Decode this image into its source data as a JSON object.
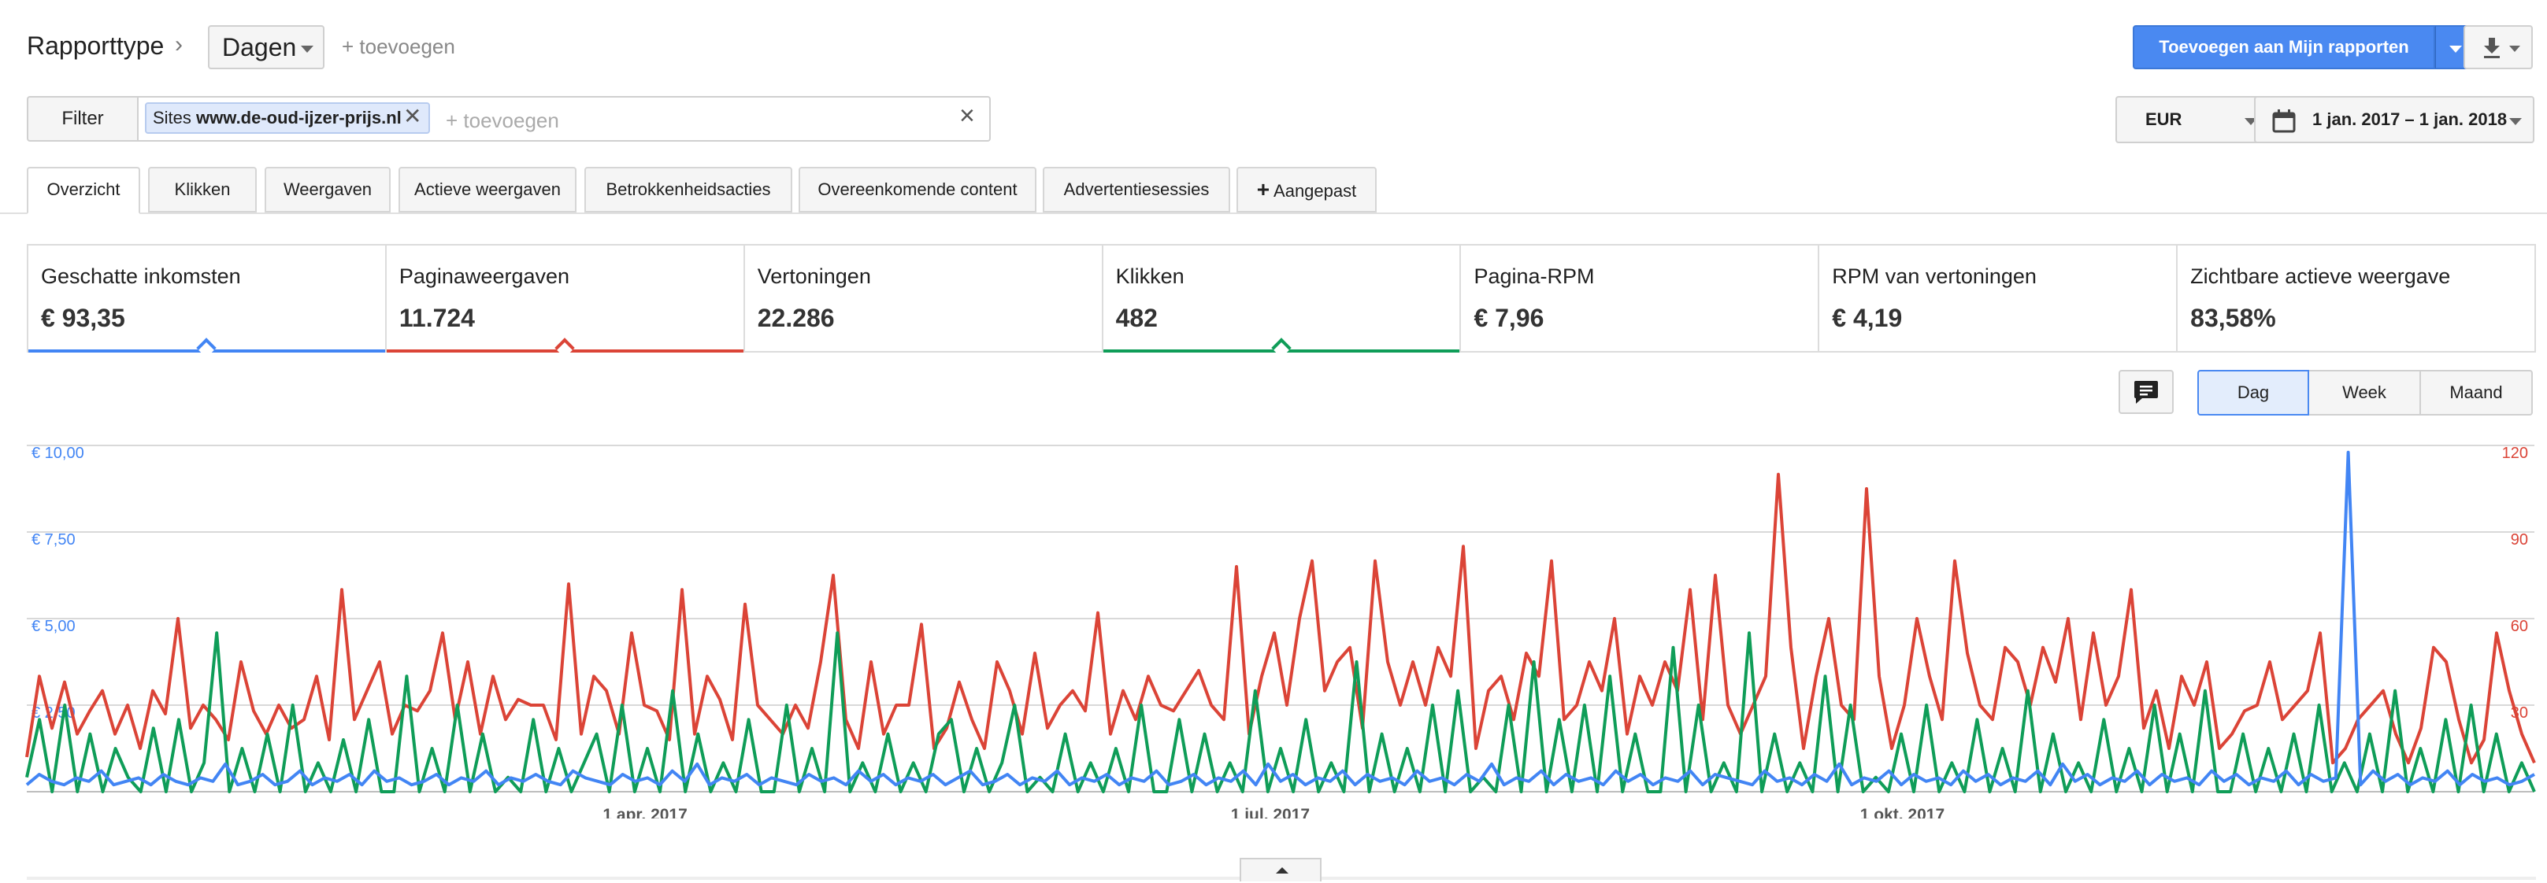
{
  "header": {
    "report_type_label": "Rapporttype",
    "granularity_value": "Dagen",
    "add_link": "+ toevoegen",
    "add_to_reports_label": "Toevoegen aan Mijn rapporten"
  },
  "filter": {
    "button_label": "Filter",
    "chip_prefix": "Sites",
    "chip_site": "www.de-oud-ijzer-prijs.nl",
    "add_placeholder": "+ toevoegen"
  },
  "currency": "EUR",
  "date_range": "1 jan. 2017 – 1 jan. 2018",
  "tabs": [
    {
      "label": "Overzicht",
      "active": true
    },
    {
      "label": "Klikken"
    },
    {
      "label": "Weergaven"
    },
    {
      "label": "Actieve weergaven"
    },
    {
      "label": "Betrokkenheidsacties"
    },
    {
      "label": "Overeenkomende content"
    },
    {
      "label": "Advertentiesessies"
    },
    {
      "label": "Aangepast"
    }
  ],
  "metrics": [
    {
      "label": "Geschatte inkomsten",
      "value": "€ 93,35",
      "color": "#4285f4"
    },
    {
      "label": "Paginaweergaven",
      "value": "11.724",
      "color": "#db4437"
    },
    {
      "label": "Vertoningen",
      "value": "22.286"
    },
    {
      "label": "Klikken",
      "value": "482",
      "color": "#0f9d58"
    },
    {
      "label": "Pagina-RPM",
      "value": "€ 7,96"
    },
    {
      "label": "RPM van vertoningen",
      "value": "€ 4,19"
    },
    {
      "label": "Zichtbare actieve weergave",
      "value": "83,58%"
    }
  ],
  "granularity_buttons": [
    "Dag",
    "Week",
    "Maand"
  ],
  "chart_data": {
    "type": "line",
    "x_range": [
      "2017-01-01",
      "2018-01-01"
    ],
    "x_tick_labels": [
      "1 apr. 2017",
      "1 jul. 2017",
      "1 okt. 2017"
    ],
    "y_left": {
      "ticks": [
        "€ 2,50",
        "€ 5,00",
        "€ 7,50",
        "€ 10,00"
      ],
      "range": [
        0,
        10
      ],
      "color": "#4285f4"
    },
    "y_right": {
      "ticks": [
        "30",
        "60",
        "90",
        "120"
      ],
      "range": [
        0,
        120
      ],
      "color": "#db4437"
    },
    "grid": true,
    "series": [
      {
        "name": "Paginaweergaven",
        "axis": "right",
        "color": "#db4437",
        "sampling_days": 2,
        "values": [
          12,
          40,
          22,
          38,
          20,
          28,
          35,
          20,
          30,
          15,
          35,
          27,
          60,
          22,
          30,
          25,
          18,
          45,
          28,
          20,
          30,
          22,
          25,
          40,
          18,
          70,
          25,
          35,
          45,
          20,
          30,
          28,
          35,
          55,
          25,
          45,
          20,
          40,
          25,
          32,
          30,
          30,
          18,
          72,
          20,
          40,
          35,
          20,
          55,
          30,
          28,
          18,
          70,
          20,
          40,
          32,
          18,
          65,
          30,
          25,
          20,
          30,
          22,
          45,
          75,
          25,
          15,
          45,
          20,
          30,
          30,
          58,
          15,
          22,
          38,
          25,
          15,
          45,
          35,
          20,
          48,
          22,
          30,
          35,
          28,
          62,
          20,
          35,
          25,
          40,
          30,
          28,
          35,
          42,
          30,
          25,
          78,
          20,
          40,
          55,
          30,
          60,
          80,
          35,
          45,
          50,
          22,
          80,
          45,
          30,
          45,
          30,
          50,
          40,
          85,
          15,
          35,
          40,
          25,
          48,
          40,
          80,
          25,
          30,
          45,
          35,
          60,
          20,
          40,
          30,
          45,
          35,
          70,
          25,
          75,
          30,
          20,
          30,
          40,
          110,
          50,
          15,
          40,
          60,
          30,
          25,
          105,
          40,
          15,
          30,
          60,
          40,
          25,
          80,
          48,
          30,
          25,
          50,
          45,
          30,
          50,
          38,
          60,
          25,
          55,
          30,
          40,
          70,
          22,
          35,
          15,
          40,
          30,
          45,
          15,
          20,
          28,
          30,
          45,
          25,
          30,
          35,
          55,
          10,
          15,
          25,
          30,
          35,
          20,
          10,
          22,
          50,
          45,
          25,
          10,
          18,
          55,
          35,
          20,
          10
        ]
      },
      {
        "name": "Klikken",
        "axis": "right",
        "color": "#0f9d58",
        "sampling_days": 2,
        "values": [
          5,
          25,
          0,
          30,
          0,
          20,
          0,
          15,
          5,
          0,
          22,
          0,
          25,
          0,
          10,
          55,
          0,
          15,
          0,
          20,
          0,
          30,
          0,
          10,
          0,
          18,
          0,
          25,
          0,
          0,
          40,
          0,
          15,
          0,
          30,
          0,
          20,
          0,
          5,
          0,
          25,
          0,
          15,
          0,
          10,
          20,
          0,
          30,
          0,
          15,
          0,
          35,
          0,
          20,
          0,
          10,
          0,
          25,
          0,
          0,
          30,
          0,
          15,
          0,
          55,
          0,
          10,
          0,
          20,
          0,
          10,
          0,
          20,
          25,
          0,
          15,
          0,
          10,
          30,
          0,
          5,
          0,
          20,
          0,
          10,
          0,
          15,
          0,
          30,
          0,
          0,
          25,
          0,
          20,
          0,
          10,
          0,
          35,
          0,
          15,
          0,
          25,
          0,
          10,
          0,
          45,
          0,
          20,
          0,
          15,
          0,
          30,
          0,
          35,
          0,
          5,
          0,
          30,
          0,
          45,
          0,
          25,
          0,
          30,
          0,
          40,
          0,
          20,
          0,
          0,
          50,
          0,
          30,
          0,
          10,
          0,
          55,
          0,
          20,
          0,
          10,
          0,
          40,
          0,
          30,
          0,
          5,
          0,
          20,
          0,
          30,
          0,
          10,
          0,
          25,
          0,
          15,
          0,
          35,
          0,
          20,
          0,
          10,
          0,
          25,
          0,
          15,
          0,
          30,
          0,
          20,
          0,
          35,
          0,
          0,
          20,
          0,
          15,
          0,
          20,
          0,
          30,
          0,
          10,
          0,
          20,
          0,
          35,
          0,
          15,
          0,
          25,
          0,
          30,
          0,
          20,
          0,
          10,
          0
        ]
      },
      {
        "name": "Geschatte inkomsten",
        "axis": "left",
        "color": "#4285f4",
        "sampling_days": 2,
        "values": [
          0.2,
          0.5,
          0.3,
          0.2,
          0.4,
          0.3,
          0.6,
          0.2,
          0.3,
          0.4,
          0.2,
          0.5,
          0.3,
          0.2,
          0.4,
          0.3,
          0.8,
          0.2,
          0.3,
          0.5,
          0.2,
          0.3,
          0.6,
          0.2,
          0.4,
          0.3,
          0.5,
          0.2,
          0.6,
          0.3,
          0.4,
          0.2,
          0.3,
          0.5,
          0.2,
          0.4,
          0.3,
          0.6,
          0.2,
          0.4,
          0.3,
          0.5,
          0.3,
          0.2,
          0.6,
          0.4,
          0.3,
          0.2,
          0.5,
          0.3,
          0.4,
          0.2,
          0.6,
          0.3,
          0.8,
          0.2,
          0.4,
          0.3,
          0.5,
          0.2,
          0.4,
          0.3,
          0.2,
          0.5,
          0.3,
          0.4,
          0.2,
          0.6,
          0.3,
          0.5,
          0.2,
          0.4,
          0.3,
          0.5,
          0.2,
          0.4,
          0.6,
          0.2,
          0.3,
          0.5,
          0.2,
          0.4,
          0.3,
          0.6,
          0.2,
          0.4,
          0.3,
          0.5,
          0.2,
          0.4,
          0.3,
          0.6,
          0.2,
          0.3,
          0.5,
          0.2,
          0.4,
          0.3,
          0.6,
          0.2,
          0.8,
          0.3,
          0.5,
          0.2,
          0.4,
          0.3,
          0.6,
          0.2,
          0.5,
          0.3,
          0.4,
          0.2,
          0.6,
          0.3,
          0.4,
          0.2,
          0.5,
          0.3,
          0.8,
          0.2,
          0.4,
          0.3,
          0.6,
          0.2,
          0.5,
          0.3,
          0.4,
          0.2,
          0.6,
          0.3,
          0.5,
          0.2,
          0.4,
          0.3,
          0.6,
          0.2,
          0.5,
          0.4,
          0.3,
          0.2,
          0.6,
          0.3,
          0.4,
          0.2,
          0.5,
          0.3,
          0.8,
          0.2,
          0.4,
          0.3,
          0.6,
          0.2,
          0.5,
          0.3,
          0.4,
          0.2,
          0.6,
          0.3,
          0.5,
          0.2,
          0.4,
          0.3,
          0.6,
          0.2,
          0.8,
          0.3,
          0.5,
          0.2,
          0.4,
          0.3,
          0.6,
          0.2,
          0.5,
          0.3,
          0.4,
          0.2,
          0.6,
          0.3,
          0.5,
          0.2,
          0.4,
          0.3,
          0.6,
          0.2,
          0.5,
          0.3,
          0.4,
          9.8,
          0.2,
          0.6,
          0.3,
          0.5,
          0.2,
          0.4,
          0.3,
          0.6,
          0.2,
          0.5,
          0.3,
          0.4,
          0.2,
          0.3,
          0.5
        ]
      }
    ]
  }
}
